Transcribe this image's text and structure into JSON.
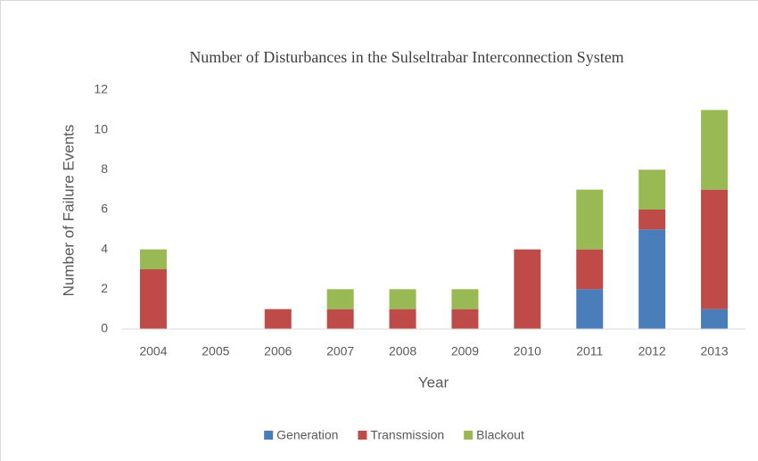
{
  "chart_data": {
    "type": "stacked_bar",
    "title": "Number of  Disturbances in the Sulseltrabar Interconnection System",
    "x_label": "Year",
    "y_label": "Number of Failure Events",
    "categories": [
      "2004",
      "2005",
      "2006",
      "2007",
      "2008",
      "2009",
      "2010",
      "2011",
      "2012",
      "2013"
    ],
    "series": [
      {
        "name": "Generation",
        "color": "#4a7ebb",
        "values": [
          0,
          0,
          0,
          0,
          0,
          0,
          0,
          2,
          5,
          1
        ]
      },
      {
        "name": "Transmission",
        "color": "#be4b48",
        "values": [
          3,
          0,
          1,
          1,
          1,
          1,
          4,
          2,
          1,
          6
        ]
      },
      {
        "name": "Blackout",
        "color": "#98b954",
        "values": [
          1,
          0,
          0,
          1,
          1,
          1,
          0,
          3,
          2,
          4
        ]
      }
    ],
    "ylim": [
      0,
      12
    ],
    "yticks": [
      0,
      2,
      4,
      6,
      8,
      10,
      12
    ],
    "grid": false,
    "legend": "bottom"
  }
}
